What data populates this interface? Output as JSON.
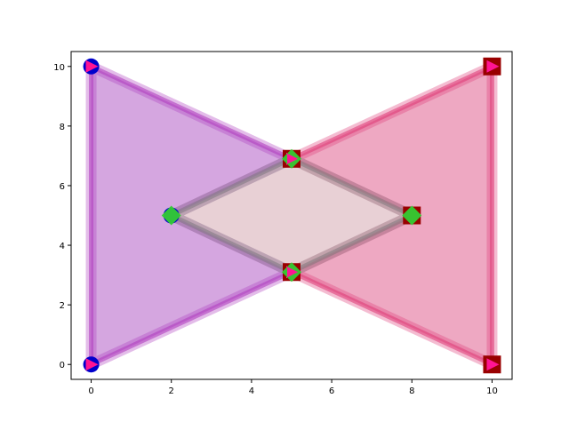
{
  "chart_data": {
    "type": "area",
    "title": "",
    "xlabel": "",
    "ylabel": "",
    "xlim": [
      -0.5,
      10.5
    ],
    "ylim": [
      -0.5,
      10.5
    ],
    "xticks": [
      0,
      2,
      4,
      6,
      8,
      10
    ],
    "yticks": [
      0,
      2,
      4,
      6,
      8,
      10
    ],
    "grid": false,
    "legend": "none",
    "polygons": [
      {
        "fill": "#b35cc7",
        "edge": "#b040c0",
        "vertices": [
          [
            0,
            10
          ],
          [
            5,
            6.9
          ],
          [
            2,
            5
          ],
          [
            5,
            3.1
          ],
          [
            0,
            0
          ]
        ]
      },
      {
        "fill": "#e0608f",
        "edge": "#e0407a",
        "vertices": [
          [
            10,
            10
          ],
          [
            5,
            6.9
          ],
          [
            8,
            5
          ],
          [
            5,
            3.1
          ],
          [
            10,
            0
          ]
        ]
      },
      {
        "fill": "#d6a9b3",
        "edge": "#888888",
        "vertices": [
          [
            5,
            6.9
          ],
          [
            8,
            5
          ],
          [
            5,
            3.1
          ],
          [
            2,
            5
          ]
        ]
      }
    ],
    "markers": {
      "circles": {
        "color": "#0000cc",
        "points": [
          [
            0,
            10
          ],
          [
            0,
            0
          ],
          [
            2,
            5
          ]
        ]
      },
      "squares": {
        "color": "#990000",
        "points": [
          [
            5,
            6.9
          ],
          [
            5,
            3.1
          ],
          [
            8,
            5
          ],
          [
            10,
            10
          ],
          [
            10,
            0
          ]
        ]
      },
      "triangles": {
        "color": "#ff1493",
        "points": [
          [
            0,
            10
          ],
          [
            0,
            0
          ],
          [
            5,
            6.9
          ],
          [
            5,
            3.1
          ],
          [
            10,
            10
          ],
          [
            10,
            0
          ]
        ]
      },
      "diamonds": {
        "color": "#33cc33",
        "points": [
          [
            2,
            5
          ],
          [
            5,
            6.9
          ],
          [
            5,
            3.1
          ],
          [
            8,
            5
          ]
        ]
      }
    }
  }
}
